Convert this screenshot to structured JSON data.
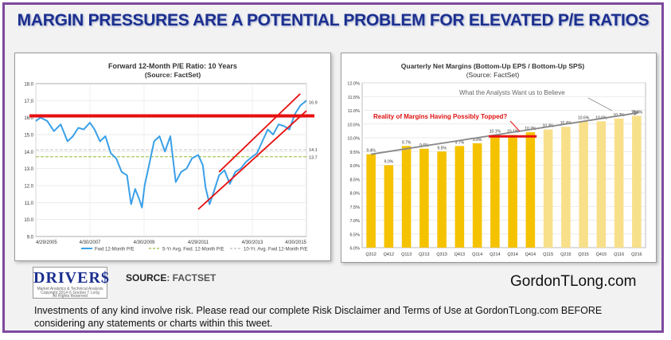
{
  "headline": "MARGIN PRESSURES ARE A POTENTIAL PROBLEM FOR ELEVATED P/E RATIOS",
  "brand": {
    "logo_text": "DRIVER$",
    "logo_sub1": "Market Analytics & Technical Analysis",
    "logo_sub2": "Copyright 2014 © Gordon T Long",
    "logo_sub3": "All Rights Reserved",
    "source_label": "SOURCE",
    "source_value": ": FACTSET",
    "website": "GordonTLong.com",
    "disclaimer": "Investments of any kind involve risk. Please read our complete Risk Disclaimer and Terms of Use at GordonTLong.com BEFORE considering any statements or charts within this tweet."
  },
  "chart_data": [
    {
      "type": "line",
      "title": "Forward 12-Month P/E Ratio: 10 Years",
      "subtitle": "(Source: FactSet)",
      "ylim": [
        9.0,
        18.0
      ],
      "yticks": [
        "9.0",
        "10.0",
        "11.0",
        "12.0",
        "13.0",
        "14.0",
        "15.0",
        "16.0",
        "17.0",
        "18.0"
      ],
      "xticks": [
        "4/29/2005",
        "4/30/2007",
        "4/30/2009",
        "4/29/2011",
        "4/30/2013",
        "4/30/2015"
      ],
      "x_range": [
        2005.33,
        2015.33
      ],
      "grid": true,
      "legend_position": "bottom",
      "series": [
        {
          "name": "Fwd 12-Month P/E",
          "color": "#3aa0e8",
          "x": [
            2005.33,
            2005.5,
            2005.75,
            2006.0,
            2006.25,
            2006.5,
            2006.7,
            2006.9,
            2007.1,
            2007.33,
            2007.5,
            2007.7,
            2007.9,
            2008.1,
            2008.3,
            2008.5,
            2008.7,
            2008.85,
            2009.0,
            2009.15,
            2009.25,
            2009.35,
            2009.5,
            2009.7,
            2009.9,
            2010.1,
            2010.3,
            2010.5,
            2010.7,
            2010.9,
            2011.1,
            2011.33,
            2011.5,
            2011.6,
            2011.75,
            2011.9,
            2012.1,
            2012.3,
            2012.5,
            2012.7,
            2012.9,
            2013.1,
            2013.33,
            2013.5,
            2013.7,
            2013.9,
            2014.1,
            2014.3,
            2014.5,
            2014.7,
            2014.9,
            2015.1,
            2015.33
          ],
          "y": [
            15.8,
            16.0,
            15.8,
            15.2,
            15.6,
            14.6,
            14.9,
            15.4,
            15.3,
            15.7,
            15.3,
            14.6,
            14.9,
            13.9,
            13.6,
            12.8,
            12.6,
            10.9,
            11.8,
            11.2,
            10.7,
            12.0,
            13.1,
            14.6,
            14.9,
            14.0,
            14.9,
            12.2,
            12.8,
            13.0,
            13.6,
            13.8,
            13.2,
            11.9,
            10.9,
            11.6,
            12.6,
            12.9,
            12.1,
            12.8,
            13.0,
            13.4,
            13.7,
            13.9,
            14.6,
            15.3,
            15.0,
            15.6,
            15.5,
            15.3,
            16.2,
            16.7,
            17.0
          ]
        },
        {
          "name": "5-Yr Avg. Fwd. 12-Month P/E",
          "color": "#a8c85a",
          "value": 13.7
        },
        {
          "name": "10-Yr. Avg. Fwd 12-Month P/E",
          "color": "#c8c8c8",
          "value": 14.1
        }
      ],
      "annotations": {
        "end_label": "16.9",
        "label_5yr": "13.7",
        "label_10yr": "14.1",
        "red_line_level": 16.1,
        "channel_upper": [
          [
            2012.1,
            12.8
          ],
          [
            2015.1,
            17.4
          ]
        ],
        "channel_lower": [
          [
            2011.33,
            10.6
          ],
          [
            2015.33,
            16.4
          ]
        ]
      }
    },
    {
      "type": "bar",
      "title": "Quarterly Net Margins (Bottom-Up EPS / Bottom-Up SPS)",
      "subtitle": "(Source: FactSet)",
      "ylim": [
        6.0,
        12.0
      ],
      "yticks": [
        "6.0%",
        "6.5%",
        "7.0%",
        "7.5%",
        "8.0%",
        "8.5%",
        "9.0%",
        "9.5%",
        "10.0%",
        "10.5%",
        "11.0%",
        "11.5%",
        "12.0%"
      ],
      "categories": [
        "Q312",
        "Q412",
        "Q113",
        "Q213",
        "Q313",
        "Q413",
        "Q114",
        "Q214",
        "Q314",
        "Q414",
        "Q115",
        "Q215",
        "Q315",
        "Q415",
        "Q116",
        "Q216"
      ],
      "values": [
        9.4,
        9.0,
        9.7,
        9.6,
        9.5,
        9.7,
        9.8,
        10.1,
        10.1,
        10.2,
        10.3,
        10.4,
        10.6,
        10.6,
        10.7,
        10.8
      ],
      "data_labels": [
        "9.4%",
        "9.0%",
        "9.7%",
        "9.6%",
        "9.5%",
        "9.7%",
        "9.8%",
        "10.1%",
        "10.1%",
        "10.2%",
        "10.3%",
        "10.4%",
        "10.6%",
        "10.6%",
        "10.7%",
        "10.8%"
      ],
      "actual_color": "#f5c200",
      "estimate_color": "#f8e08a",
      "estimate_from_index": 10,
      "grid": true,
      "annotations": {
        "trend_label": "What the Analysts Want us to Believe",
        "topped_label": "Reality of Margins Having Possibly Topped?",
        "trend_from": [
          0,
          9.4
        ],
        "trend_to": [
          15,
          10.9
        ],
        "red_level": 10.05,
        "red_from_index": 7,
        "red_to_index": 9
      }
    }
  ]
}
